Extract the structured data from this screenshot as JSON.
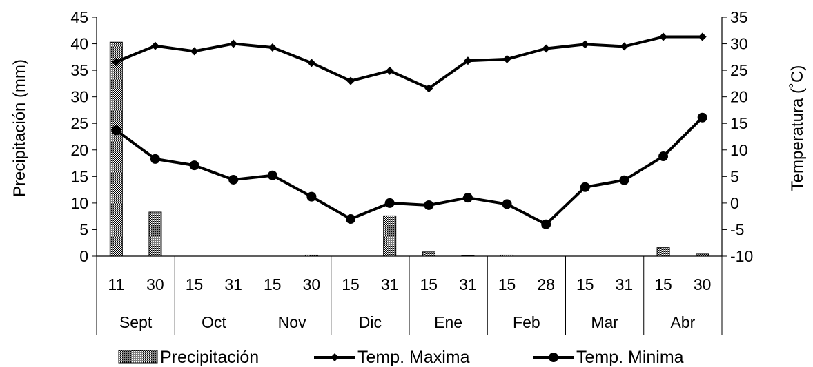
{
  "chart_data": {
    "type": "bar",
    "categories": [
      {
        "group": "Sept",
        "day": "11"
      },
      {
        "group": "Sept",
        "day": "30"
      },
      {
        "group": "Oct",
        "day": "15"
      },
      {
        "group": "Oct",
        "day": "31"
      },
      {
        "group": "Nov",
        "day": "15"
      },
      {
        "group": "Nov",
        "day": "30"
      },
      {
        "group": "Dic",
        "day": "15"
      },
      {
        "group": "Dic",
        "day": "31"
      },
      {
        "group": "Ene",
        "day": "15"
      },
      {
        "group": "Ene",
        "day": "31"
      },
      {
        "group": "Feb",
        "day": "15"
      },
      {
        "group": "Feb",
        "day": "28"
      },
      {
        "group": "Mar",
        "day": "15"
      },
      {
        "group": "Mar",
        "day": "31"
      },
      {
        "group": "Abr",
        "day": "15"
      },
      {
        "group": "Abr",
        "day": "30"
      }
    ],
    "groups": [
      "Sept",
      "Oct",
      "Nov",
      "Dic",
      "Ene",
      "Feb",
      "Mar",
      "Abr"
    ],
    "series": [
      {
        "name": "Precipitación",
        "type": "bar",
        "axis": "left",
        "color": "#000000",
        "values": [
          40.3,
          8.3,
          0,
          0,
          0,
          0.2,
          0,
          7.6,
          0.8,
          0.1,
          0.2,
          0,
          0,
          0,
          1.6,
          0.4
        ]
      },
      {
        "name": "Temp. Maxima",
        "type": "line",
        "axis": "right",
        "marker": "diamond",
        "color": "#000000",
        "values": [
          26.6,
          29.6,
          28.6,
          30.0,
          29.3,
          26.4,
          23.0,
          24.9,
          21.6,
          26.8,
          27.1,
          29.1,
          29.9,
          29.5,
          31.3,
          31.3
        ]
      },
      {
        "name": "Temp. Minima",
        "type": "line",
        "axis": "right",
        "marker": "circle",
        "color": "#000000",
        "values": [
          13.7,
          8.3,
          7.1,
          4.4,
          5.2,
          1.2,
          -3.0,
          0.0,
          -0.4,
          1.0,
          -0.2,
          -4.0,
          3.0,
          4.3,
          8.8,
          16.1
        ]
      }
    ],
    "y_left": {
      "label": "Precipitación (mm)",
      "min": 0,
      "max": 45,
      "step": 5,
      "ticks": [
        "0",
        "5",
        "10",
        "15",
        "20",
        "25",
        "30",
        "35",
        "40",
        "45"
      ]
    },
    "y_right": {
      "label": "Temperatura (˚C)",
      "min": -10,
      "max": 35,
      "step": 5,
      "ticks": [
        "-10",
        "-5",
        "0",
        "5",
        "10",
        "15",
        "20",
        "25",
        "30",
        "35"
      ]
    },
    "grid": false,
    "legend": {
      "position": "bottom",
      "items": [
        "Precipitación",
        "Temp. Maxima",
        "Temp. Minima"
      ]
    }
  }
}
